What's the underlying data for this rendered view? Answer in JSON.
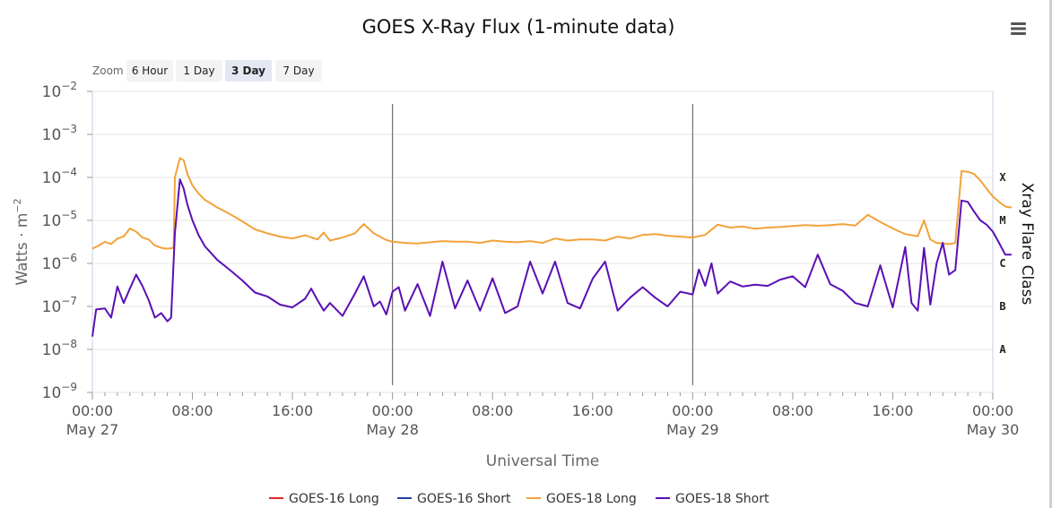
{
  "menu": {
    "icon": "hamburger-menu-icon"
  },
  "zoom": {
    "label": "Zoom",
    "buttons": [
      "6 Hour",
      "1 Day",
      "3 Day",
      "7 Day"
    ],
    "active": "3 Day"
  },
  "chart_data": {
    "type": "line",
    "title": "GOES X-Ray Flux (1-minute data)",
    "xlabel": "Universal Time",
    "ylabel": "Watts · m",
    "ylabel_exponent": "−2",
    "y_scale": "log",
    "ylim": [
      1e-09,
      0.01
    ],
    "y_ticks": [
      {
        "base": "10",
        "exp": "−9"
      },
      {
        "base": "10",
        "exp": "−8"
      },
      {
        "base": "10",
        "exp": "−7"
      },
      {
        "base": "10",
        "exp": "−6"
      },
      {
        "base": "10",
        "exp": "−5"
      },
      {
        "base": "10",
        "exp": "−4"
      },
      {
        "base": "10",
        "exp": "−3"
      },
      {
        "base": "10",
        "exp": "−2"
      }
    ],
    "xlim": [
      "May 27 00:00",
      "May 30 00:00"
    ],
    "x_ticks": [
      {
        "time": "00:00",
        "date": "May 27"
      },
      {
        "time": "08:00",
        "date": ""
      },
      {
        "time": "16:00",
        "date": ""
      },
      {
        "time": "00:00",
        "date": "May 28"
      },
      {
        "time": "08:00",
        "date": ""
      },
      {
        "time": "16:00",
        "date": ""
      },
      {
        "time": "00:00",
        "date": "May 29"
      },
      {
        "time": "08:00",
        "date": ""
      },
      {
        "time": "16:00",
        "date": ""
      },
      {
        "time": "00:00",
        "date": "May 30"
      }
    ],
    "right_axis": {
      "label": "Xray Flare Class",
      "classes": [
        {
          "name": "A",
          "flux": 1e-08
        },
        {
          "name": "B",
          "flux": 1e-07
        },
        {
          "name": "C",
          "flux": 1e-06
        },
        {
          "name": "M",
          "flux": 1e-05
        },
        {
          "name": "X",
          "flux": 0.0001
        }
      ]
    },
    "grid": true,
    "legend_position": "bottom",
    "day_dividers_hours": [
      24,
      48
    ],
    "series": [
      {
        "name": "GOES-16 Long",
        "color": "#e3262a",
        "points": []
      },
      {
        "name": "GOES-16 Short",
        "color": "#1f3fa8",
        "points": []
      },
      {
        "name": "GOES-18 Long",
        "color": "#f2a23a",
        "points": [
          [
            0,
            2.2e-06
          ],
          [
            0.5,
            2.6e-06
          ],
          [
            1,
            3.2e-06
          ],
          [
            1.5,
            2.8e-06
          ],
          [
            2,
            3.8e-06
          ],
          [
            2.5,
            4.2e-06
          ],
          [
            3,
            6.5e-06
          ],
          [
            3.5,
            5.5e-06
          ],
          [
            4,
            4e-06
          ],
          [
            4.5,
            3.6e-06
          ],
          [
            5,
            2.6e-06
          ],
          [
            5.5,
            2.3e-06
          ],
          [
            6,
            2.2e-06
          ],
          [
            6.5,
            2.3e-06
          ],
          [
            6.6,
            0.0001
          ],
          [
            7,
            0.00028
          ],
          [
            7.3,
            0.00025
          ],
          [
            7.6,
            0.00012
          ],
          [
            8,
            6.5e-05
          ],
          [
            8.5,
            4.2e-05
          ],
          [
            9,
            3e-05
          ],
          [
            10,
            2e-05
          ],
          [
            11,
            1.4e-05
          ],
          [
            12,
            9.5e-06
          ],
          [
            13,
            6.2e-06
          ],
          [
            14,
            5e-06
          ],
          [
            15,
            4.2e-06
          ],
          [
            16,
            3.8e-06
          ],
          [
            17,
            4.5e-06
          ],
          [
            18,
            3.6e-06
          ],
          [
            18.5,
            5.2e-06
          ],
          [
            19,
            3.4e-06
          ],
          [
            20,
            4e-06
          ],
          [
            21,
            5e-06
          ],
          [
            21.7,
            8.2e-06
          ],
          [
            22.5,
            5e-06
          ],
          [
            23.5,
            3.5e-06
          ],
          [
            24,
            3.2e-06
          ],
          [
            25,
            3e-06
          ],
          [
            26,
            2.9e-06
          ],
          [
            27,
            3.1e-06
          ],
          [
            28,
            3.3e-06
          ],
          [
            29,
            3.2e-06
          ],
          [
            30,
            3.2e-06
          ],
          [
            31,
            3e-06
          ],
          [
            32,
            3.4e-06
          ],
          [
            33,
            3.2e-06
          ],
          [
            34,
            3.1e-06
          ],
          [
            35,
            3.3e-06
          ],
          [
            36,
            3e-06
          ],
          [
            37,
            3.8e-06
          ],
          [
            38,
            3.4e-06
          ],
          [
            39,
            3.6e-06
          ],
          [
            40,
            3.6e-06
          ],
          [
            41,
            3.4e-06
          ],
          [
            42,
            4.2e-06
          ],
          [
            43,
            3.8e-06
          ],
          [
            44,
            4.6e-06
          ],
          [
            45,
            4.8e-06
          ],
          [
            46,
            4.4e-06
          ],
          [
            47,
            4.2e-06
          ],
          [
            48,
            4e-06
          ],
          [
            49,
            4.6e-06
          ],
          [
            50,
            8e-06
          ],
          [
            51,
            6.8e-06
          ],
          [
            52,
            7.2e-06
          ],
          [
            53,
            6.4e-06
          ],
          [
            54,
            6.8e-06
          ],
          [
            55,
            7e-06
          ],
          [
            56,
            7.4e-06
          ],
          [
            57,
            7.8e-06
          ],
          [
            58,
            7.5e-06
          ],
          [
            59,
            7.8e-06
          ],
          [
            60,
            8.2e-06
          ],
          [
            61,
            7.6e-06
          ],
          [
            62,
            1.35e-05
          ],
          [
            63,
            9.2e-06
          ],
          [
            64,
            6.5e-06
          ],
          [
            65,
            4.8e-06
          ],
          [
            66,
            4.3e-06
          ],
          [
            66.5,
            1e-05
          ],
          [
            67,
            3.6e-06
          ],
          [
            67.5,
            3e-06
          ],
          [
            68,
            2.9e-06
          ],
          [
            68.5,
            2.8e-06
          ],
          [
            69,
            3e-06
          ],
          [
            69.5,
            0.00014
          ],
          [
            70,
            0.000135
          ],
          [
            70.5,
            0.00012
          ],
          [
            71,
            8.5e-05
          ],
          [
            71.5,
            5.5e-05
          ],
          [
            72,
            3.6e-05
          ],
          [
            72.5,
            2.7e-05
          ],
          [
            73,
            2.1e-05
          ],
          [
            73.5,
            2e-05
          ]
        ]
      },
      {
        "name": "GOES-18 Short",
        "color": "#5a0fb4",
        "points": [
          [
            0,
            2e-08
          ],
          [
            0.3,
            8.5e-08
          ],
          [
            1,
            9e-08
          ],
          [
            1.5,
            5.5e-08
          ],
          [
            2,
            2.9e-07
          ],
          [
            2.5,
            1.2e-07
          ],
          [
            3,
            2.6e-07
          ],
          [
            3.5,
            5.5e-07
          ],
          [
            4,
            3e-07
          ],
          [
            4.5,
            1.4e-07
          ],
          [
            5,
            5.5e-08
          ],
          [
            5.5,
            7e-08
          ],
          [
            6,
            4.5e-08
          ],
          [
            6.3,
            5.5e-08
          ],
          [
            6.6,
            5e-06
          ],
          [
            7,
            9e-05
          ],
          [
            7.3,
            5.5e-05
          ],
          [
            7.6,
            2.3e-05
          ],
          [
            8,
            1e-05
          ],
          [
            8.5,
            4.5e-06
          ],
          [
            9,
            2.5e-06
          ],
          [
            10,
            1.2e-06
          ],
          [
            11,
            7e-07
          ],
          [
            12,
            4e-07
          ],
          [
            13,
            2.1e-07
          ],
          [
            14,
            1.7e-07
          ],
          [
            15,
            1.1e-07
          ],
          [
            16,
            9.5e-08
          ],
          [
            17,
            1.5e-07
          ],
          [
            17.5,
            2.6e-07
          ],
          [
            18,
            1.4e-07
          ],
          [
            18.5,
            8e-08
          ],
          [
            19,
            1.2e-07
          ],
          [
            20,
            6e-08
          ],
          [
            21,
            2e-07
          ],
          [
            21.7,
            5e-07
          ],
          [
            22.5,
            1e-07
          ],
          [
            23,
            1.3e-07
          ],
          [
            23.5,
            6.5e-08
          ],
          [
            24,
            2.2e-07
          ],
          [
            24.5,
            2.8e-07
          ],
          [
            25,
            8e-08
          ],
          [
            26,
            3.3e-07
          ],
          [
            27,
            6e-08
          ],
          [
            28,
            1.1e-06
          ],
          [
            29,
            9e-08
          ],
          [
            30,
            4e-07
          ],
          [
            31,
            8e-08
          ],
          [
            32,
            4.5e-07
          ],
          [
            33,
            7e-08
          ],
          [
            34,
            1e-07
          ],
          [
            35,
            1.1e-06
          ],
          [
            36,
            2e-07
          ],
          [
            37,
            1.1e-06
          ],
          [
            38,
            1.2e-07
          ],
          [
            39,
            9e-08
          ],
          [
            40,
            4.4e-07
          ],
          [
            41,
            1.1e-06
          ],
          [
            42,
            8e-08
          ],
          [
            43,
            1.6e-07
          ],
          [
            44,
            2.8e-07
          ],
          [
            45,
            1.6e-07
          ],
          [
            46,
            1e-07
          ],
          [
            47,
            2.2e-07
          ],
          [
            48,
            1.9e-07
          ],
          [
            48.5,
            7.2e-07
          ],
          [
            49,
            3e-07
          ],
          [
            49.5,
            1e-06
          ],
          [
            50,
            2e-07
          ],
          [
            51,
            3.8e-07
          ],
          [
            52,
            2.9e-07
          ],
          [
            53,
            3.2e-07
          ],
          [
            54,
            3e-07
          ],
          [
            55,
            4.2e-07
          ],
          [
            56,
            5e-07
          ],
          [
            57,
            2.8e-07
          ],
          [
            58,
            1.6e-06
          ],
          [
            59,
            3.3e-07
          ],
          [
            60,
            2.3e-07
          ],
          [
            61,
            1.2e-07
          ],
          [
            62,
            1e-07
          ],
          [
            63,
            9e-07
          ],
          [
            64,
            9.5e-08
          ],
          [
            65,
            2.4e-06
          ],
          [
            65.5,
            1.2e-07
          ],
          [
            66,
            8e-08
          ],
          [
            66.5,
            2.3e-06
          ],
          [
            67,
            1.1e-07
          ],
          [
            67.5,
            1e-06
          ],
          [
            68,
            3e-06
          ],
          [
            68.5,
            5.5e-07
          ],
          [
            69,
            7e-07
          ],
          [
            69.5,
            2.9e-05
          ],
          [
            70,
            2.7e-05
          ],
          [
            70.5,
            1.6e-05
          ],
          [
            71,
            1e-05
          ],
          [
            71.5,
            8e-06
          ],
          [
            72,
            5.5e-06
          ],
          [
            72.5,
            3e-06
          ],
          [
            73,
            1.6e-06
          ],
          [
            73.5,
            1.6e-06
          ]
        ]
      }
    ]
  }
}
